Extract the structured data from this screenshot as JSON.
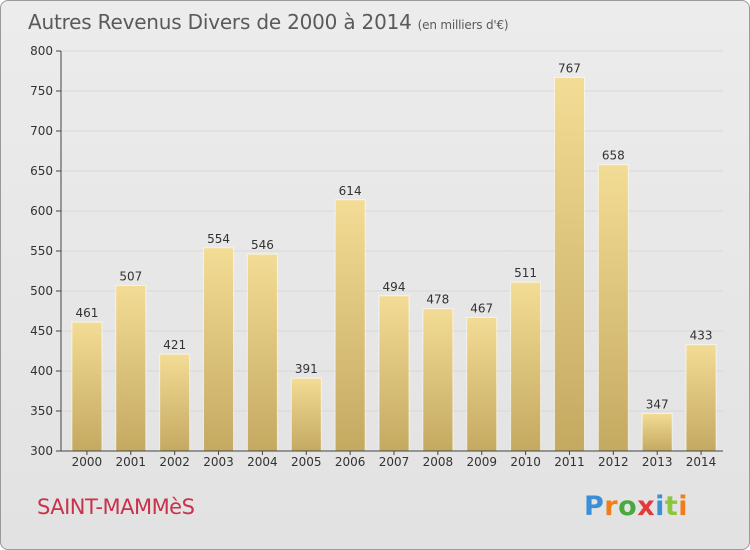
{
  "title": "Autres Revenus Divers de 2000 à 2014",
  "unit": "(en milliers d'€)",
  "commune": "SAINT-MAMMèS",
  "logo": {
    "letters": [
      "P",
      "r",
      "o",
      "x",
      "i",
      "t",
      "i"
    ],
    "colors": [
      "#3a8fd6",
      "#ef7d1a",
      "#4aa83f",
      "#e23b3b",
      "#3a8fd6",
      "#8cc63f",
      "#ef7d1a"
    ]
  },
  "colors": {
    "bar_light": "#f3dc95",
    "bar_dark": "#c4a961",
    "grid": "#d8d8d8",
    "axis": "#444444",
    "text": "#333333"
  },
  "chart_data": {
    "type": "bar",
    "categories": [
      "2000",
      "2001",
      "2002",
      "2003",
      "2004",
      "2005",
      "2006",
      "2007",
      "2008",
      "2009",
      "2010",
      "2011",
      "2012",
      "2013",
      "2014"
    ],
    "values": [
      461,
      507,
      421,
      554,
      546,
      391,
      614,
      494,
      478,
      467,
      511,
      767,
      658,
      347,
      433
    ],
    "ylim": [
      300,
      800
    ],
    "yticks": [
      300,
      350,
      400,
      450,
      500,
      550,
      600,
      650,
      700,
      750,
      800
    ],
    "grid": true
  }
}
